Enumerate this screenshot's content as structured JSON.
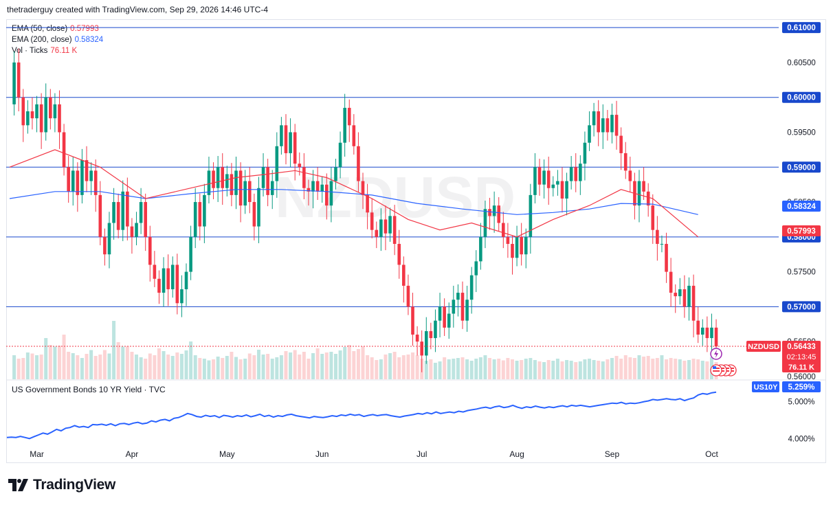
{
  "header": {
    "attribution": "thetraderguy created with TradingView.com, Sep 29, 2026 14:46 UTC-4"
  },
  "legend": [
    {
      "label": "EMA (50, close)",
      "value": "0.57993",
      "color": "#f23645"
    },
    {
      "label": "EMA (200, close)",
      "value": "0.58324",
      "color": "#2962ff"
    },
    {
      "label": "Vol · Ticks",
      "value": "76.11 K",
      "color": "#f23645"
    }
  ],
  "subpane": {
    "title": "US Government Bonds 10 YR Yield · TVC"
  },
  "footer": {
    "brand": "TradingView"
  },
  "watermark": "NZDUSD",
  "chart_data": [
    {
      "type": "candlestick",
      "symbol": "NZDUSD",
      "ylim": [
        0.5595,
        0.611
      ],
      "price_ticks": [
        "0.60500",
        "0.59500",
        "0.58500",
        "0.57500",
        "0.56500",
        "0.56000"
      ],
      "horizontal_levels": [
        "0.61000",
        "0.60000",
        "0.59000",
        "0.58000",
        "0.57000"
      ],
      "level_values": [
        0.61,
        0.6,
        0.59,
        0.58,
        0.57
      ],
      "x_ticks": [
        "Mar",
        "Apr",
        "May",
        "Jun",
        "Jul",
        "Aug",
        "Sep",
        "Oct"
      ],
      "x_tick_index": [
        6,
        27,
        48,
        69,
        91,
        112,
        133,
        155
      ],
      "last_price": {
        "symbol": "NZDUSD",
        "price": "0.56433",
        "countdown": "02:13:45",
        "volume": "76.11 K",
        "value": 0.56433
      },
      "ema50": {
        "name": "EMA (50, close)",
        "value": "0.57993",
        "color": "#f23645",
        "anchors": [
          [
            0,
            0.59
          ],
          [
            10,
            0.5925
          ],
          [
            20,
            0.59
          ],
          [
            30,
            0.5855
          ],
          [
            40,
            0.587
          ],
          [
            50,
            0.5885
          ],
          [
            57,
            0.589
          ],
          [
            63,
            0.5895
          ],
          [
            70,
            0.5885
          ],
          [
            80,
            0.5855
          ],
          [
            88,
            0.5825
          ],
          [
            95,
            0.581
          ],
          [
            102,
            0.582
          ],
          [
            112,
            0.58
          ],
          [
            120,
            0.5825
          ],
          [
            128,
            0.5845
          ],
          [
            135,
            0.5868
          ],
          [
            142,
            0.5855
          ],
          [
            152,
            0.58
          ]
        ]
      },
      "ema200": {
        "name": "EMA (200, close)",
        "value": "0.58324",
        "color": "#2962ff",
        "anchors": [
          [
            0,
            0.5855
          ],
          [
            10,
            0.5865
          ],
          [
            20,
            0.5865
          ],
          [
            30,
            0.5855
          ],
          [
            40,
            0.5862
          ],
          [
            50,
            0.5868
          ],
          [
            60,
            0.5868
          ],
          [
            70,
            0.5865
          ],
          [
            80,
            0.586
          ],
          [
            90,
            0.5848
          ],
          [
            100,
            0.584
          ],
          [
            112,
            0.5832
          ],
          [
            120,
            0.5835
          ],
          [
            128,
            0.584
          ],
          [
            135,
            0.5848
          ],
          [
            142,
            0.5847
          ],
          [
            152,
            0.5832
          ]
        ]
      },
      "candles_start": {
        "x": 0,
        "open": 0.599,
        "close": 0.6035
      },
      "candle_path": [
        0.599,
        0.605,
        0.6,
        0.596,
        0.598,
        0.597,
        0.599,
        0.595,
        0.6,
        0.597,
        0.599,
        0.595,
        0.59,
        0.5865,
        0.5895,
        0.586,
        0.591,
        0.588,
        0.5895,
        0.586,
        0.58,
        0.5775,
        0.582,
        0.585,
        0.581,
        0.5865,
        0.5815,
        0.58,
        0.582,
        0.585,
        0.58,
        0.576,
        0.574,
        0.572,
        0.5755,
        0.5725,
        0.576,
        0.5705,
        0.5725,
        0.575,
        0.58,
        0.585,
        0.5815,
        0.586,
        0.5895,
        0.587,
        0.59,
        0.587,
        0.589,
        0.586,
        0.5895,
        0.5845,
        0.588,
        0.585,
        0.5815,
        0.587,
        0.59,
        0.586,
        0.588,
        0.593,
        0.596,
        0.592,
        0.595,
        0.5905,
        0.59,
        0.587,
        0.5865,
        0.588,
        0.5865,
        0.5875,
        0.5845,
        0.588,
        0.59,
        0.5935,
        0.5985,
        0.596,
        0.593,
        0.588,
        0.586,
        0.5835,
        0.581,
        0.58,
        0.5825,
        0.5805,
        0.583,
        0.579,
        0.576,
        0.573,
        0.57,
        0.566,
        0.565,
        0.563,
        0.5665,
        0.5655,
        0.568,
        0.57,
        0.567,
        0.569,
        0.571,
        0.572,
        0.568,
        0.571,
        0.5745,
        0.5765,
        0.58,
        0.584,
        0.583,
        0.5845,
        0.582,
        0.58,
        0.579,
        0.577,
        0.58,
        0.5775,
        0.58,
        0.586,
        0.59,
        0.5875,
        0.5895,
        0.587,
        0.5875,
        0.588,
        0.5855,
        0.588,
        0.59,
        0.588,
        0.5905,
        0.5935,
        0.596,
        0.598,
        0.595,
        0.597,
        0.595,
        0.5975,
        0.5945,
        0.592,
        0.5895,
        0.588,
        0.5845,
        0.588,
        0.5865,
        0.5845,
        0.581,
        0.579,
        0.579,
        0.575,
        0.572,
        0.5715,
        0.5725,
        0.57,
        0.573,
        0.568,
        0.566,
        0.567,
        0.5655,
        0.567,
        0.5643
      ]
    },
    {
      "type": "line",
      "name": "US Government Bonds 10 YR Yield · TVC",
      "symbol": "US10Y",
      "last_value": "5.259%",
      "ticks": [
        "5.000%",
        "4.000%"
      ],
      "tick_values": [
        5.0,
        4.0
      ],
      "ylim": [
        3.82,
        5.42
      ],
      "values": [
        4.03,
        4.04,
        4.03,
        4.06,
        4.03,
        4.0,
        4.05,
        4.1,
        4.15,
        4.12,
        4.18,
        4.25,
        4.21,
        4.28,
        4.3,
        4.35,
        4.31,
        4.33,
        4.3,
        4.38,
        4.37,
        4.39,
        4.36,
        4.4,
        4.35,
        4.4,
        4.41,
        4.38,
        4.42,
        4.44,
        4.4,
        4.42,
        4.48,
        4.45,
        4.5,
        4.52,
        4.48,
        4.55,
        4.57,
        4.62,
        4.68,
        4.65,
        4.6,
        4.58,
        4.63,
        4.6,
        4.62,
        4.57,
        4.63,
        4.61,
        4.58,
        4.62,
        4.6,
        4.64,
        4.59,
        4.62,
        4.66,
        4.6,
        4.63,
        4.58,
        4.62,
        4.6,
        4.64,
        4.66,
        4.62,
        4.6,
        4.58,
        4.56,
        4.6,
        4.58,
        4.57,
        4.59,
        4.62,
        4.6,
        4.64,
        4.62,
        4.66,
        4.63,
        4.65,
        4.6,
        4.63,
        4.65,
        4.62,
        4.64,
        4.65,
        4.62,
        4.6,
        4.58,
        4.61,
        4.63,
        4.65,
        4.68,
        4.66,
        4.7,
        4.67,
        4.72,
        4.68,
        4.7,
        4.72,
        4.7,
        4.74,
        4.72,
        4.76,
        4.78,
        4.8,
        4.83,
        4.85,
        4.82,
        4.86,
        4.88,
        4.84,
        4.86,
        4.9,
        4.85,
        4.82,
        4.86,
        4.84,
        4.88,
        4.85,
        4.83,
        4.86,
        4.84,
        4.87,
        4.89,
        4.86,
        4.9,
        4.88,
        4.9,
        4.88,
        4.86,
        4.88,
        4.9,
        4.92,
        4.94,
        4.96,
        4.95,
        4.98,
        4.94,
        4.96,
        4.95,
        4.97,
        5.0,
        5.02,
        5.06,
        5.04,
        5.06,
        5.08,
        5.06,
        5.05,
        5.08,
        5.03,
        5.07,
        5.1,
        5.18,
        5.22,
        5.2,
        5.24,
        5.259
      ]
    },
    {
      "type": "bar",
      "name": "Vol · Ticks",
      "last_value": "76.11 K",
      "max": 180,
      "values": [
        55,
        70,
        60,
        62,
        78,
        75,
        70,
        72,
        120,
        100,
        95,
        98,
        130,
        80,
        76,
        70,
        62,
        74,
        85,
        68,
        72,
        85,
        75,
        170,
        108,
        95,
        96,
        80,
        72,
        64,
        60,
        75,
        70,
        90,
        82,
        72,
        68,
        78,
        74,
        84,
        110,
        70,
        62,
        60,
        55,
        58,
        66,
        62,
        68,
        80,
        65,
        58,
        60,
        75,
        70,
        86,
        72,
        74,
        60,
        64,
        70,
        82,
        78,
        85,
        72,
        80,
        60,
        76,
        90,
        74,
        78,
        80,
        74,
        84,
        94,
        100,
        82,
        88,
        96,
        70,
        64,
        56,
        58,
        72,
        76,
        80,
        64,
        70,
        72,
        78,
        70,
        60,
        54,
        58,
        48,
        52,
        64,
        58,
        60,
        62,
        64,
        58,
        54,
        60,
        64,
        70,
        62,
        58,
        60,
        55,
        62,
        58,
        54,
        56,
        60,
        62,
        56,
        52,
        50,
        56,
        54,
        60,
        52,
        56,
        54,
        50,
        52,
        58,
        60,
        56,
        54,
        52,
        58,
        62,
        68,
        60,
        70,
        64,
        62,
        70,
        66,
        68,
        60,
        62,
        70,
        58,
        62,
        60,
        58,
        54,
        56,
        60,
        58,
        54,
        52,
        64
      ]
    }
  ]
}
